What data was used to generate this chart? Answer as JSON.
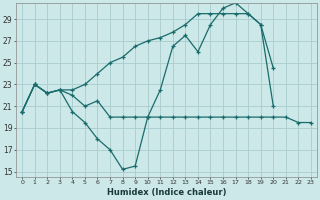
{
  "xlabel": "Humidex (Indice chaleur)",
  "bg_color": "#cce8e8",
  "line_color": "#1a6b6b",
  "grid_color": "#aacccc",
  "xlim": [
    -0.5,
    23.5
  ],
  "ylim": [
    14.5,
    30.5
  ],
  "xticks": [
    0,
    1,
    2,
    3,
    4,
    5,
    6,
    7,
    8,
    9,
    10,
    11,
    12,
    13,
    14,
    15,
    16,
    17,
    18,
    19,
    20,
    21,
    22,
    23
  ],
  "yticks": [
    15,
    17,
    19,
    21,
    23,
    25,
    27,
    29
  ],
  "line1_x": [
    0,
    1,
    2,
    3,
    4,
    5,
    6,
    7,
    8,
    9,
    10,
    11,
    12,
    13,
    14,
    15,
    16,
    17,
    18,
    19,
    20
  ],
  "line1_y": [
    20.5,
    23.0,
    22.2,
    22.5,
    20.5,
    19.5,
    18.0,
    17.0,
    15.2,
    15.5,
    20.0,
    22.5,
    26.5,
    27.5,
    26.0,
    28.5,
    30.0,
    30.5,
    29.5,
    28.5,
    24.5
  ],
  "line2_x": [
    0,
    1,
    2,
    3,
    4,
    5,
    6,
    7,
    8,
    9,
    10,
    11,
    12,
    13,
    14,
    15,
    16,
    17,
    18,
    19,
    20,
    21,
    22,
    23
  ],
  "line2_y": [
    20.5,
    23.0,
    22.2,
    22.5,
    22.0,
    21.0,
    21.5,
    20.0,
    20.0,
    20.0,
    20.0,
    20.0,
    20.0,
    20.0,
    20.0,
    20.0,
    20.0,
    20.0,
    20.0,
    20.0,
    20.0,
    20.0,
    19.5,
    19.5
  ],
  "line3_x": [
    0,
    1,
    2,
    3,
    4,
    5,
    6,
    7,
    8,
    9,
    10,
    11,
    12,
    13,
    14,
    15,
    16,
    17,
    18,
    19,
    20
  ],
  "line3_y": [
    20.5,
    23.0,
    22.2,
    22.5,
    22.5,
    23.0,
    24.0,
    25.0,
    25.5,
    26.5,
    27.0,
    27.3,
    27.8,
    28.5,
    29.5,
    29.5,
    29.5,
    29.5,
    29.5,
    28.5,
    21.0
  ]
}
